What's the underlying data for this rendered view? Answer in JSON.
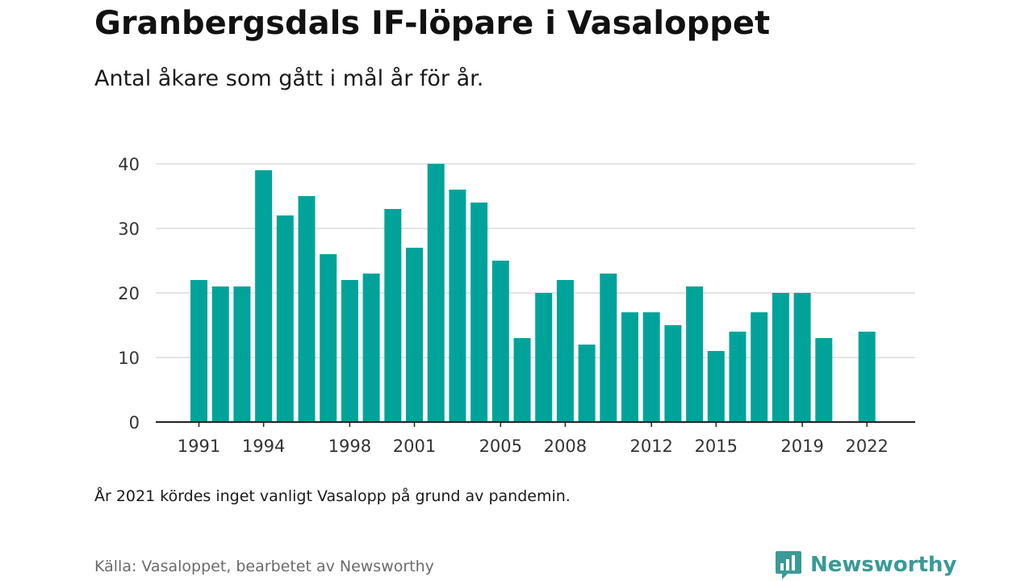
{
  "header": {
    "title": "Granbergsdals IF-löpare i Vasaloppet",
    "subtitle": "Antal åkare som gått i mål år för år."
  },
  "footer": {
    "note": "År 2021 kördes inget vanligt Vasalopp på grund av pandemin.",
    "source": "Källa: Vasaloppet, bearbetet av Newsworthy",
    "brand": "Newsworthy"
  },
  "colors": {
    "bar": "#00a39a",
    "grid": "#dcdcdc",
    "axis": "#222222",
    "brand": "#3a9a96"
  },
  "chart_data": {
    "type": "bar",
    "title": "Granbergsdals IF-löpare i Vasaloppet",
    "subtitle": "Antal åkare som gått i mål år för år.",
    "x": [
      1991,
      1992,
      1993,
      1994,
      1995,
      1996,
      1997,
      1998,
      1999,
      2000,
      2001,
      2002,
      2003,
      2004,
      2005,
      2006,
      2007,
      2008,
      2009,
      2010,
      2011,
      2012,
      2013,
      2014,
      2015,
      2016,
      2017,
      2018,
      2019,
      2020,
      2021,
      2022
    ],
    "values": [
      22,
      21,
      21,
      39,
      32,
      35,
      26,
      22,
      23,
      33,
      27,
      40,
      36,
      34,
      25,
      13,
      20,
      22,
      12,
      23,
      17,
      17,
      15,
      21,
      11,
      14,
      17,
      20,
      20,
      13,
      null,
      14
    ],
    "xticks": [
      "1991",
      "1994",
      "1998",
      "2001",
      "2005",
      "2008",
      "2012",
      "2015",
      "2019",
      "2022"
    ],
    "yticks": [
      "0",
      "10",
      "20",
      "30",
      "40"
    ],
    "ylim": [
      0,
      40
    ],
    "grid": true
  }
}
